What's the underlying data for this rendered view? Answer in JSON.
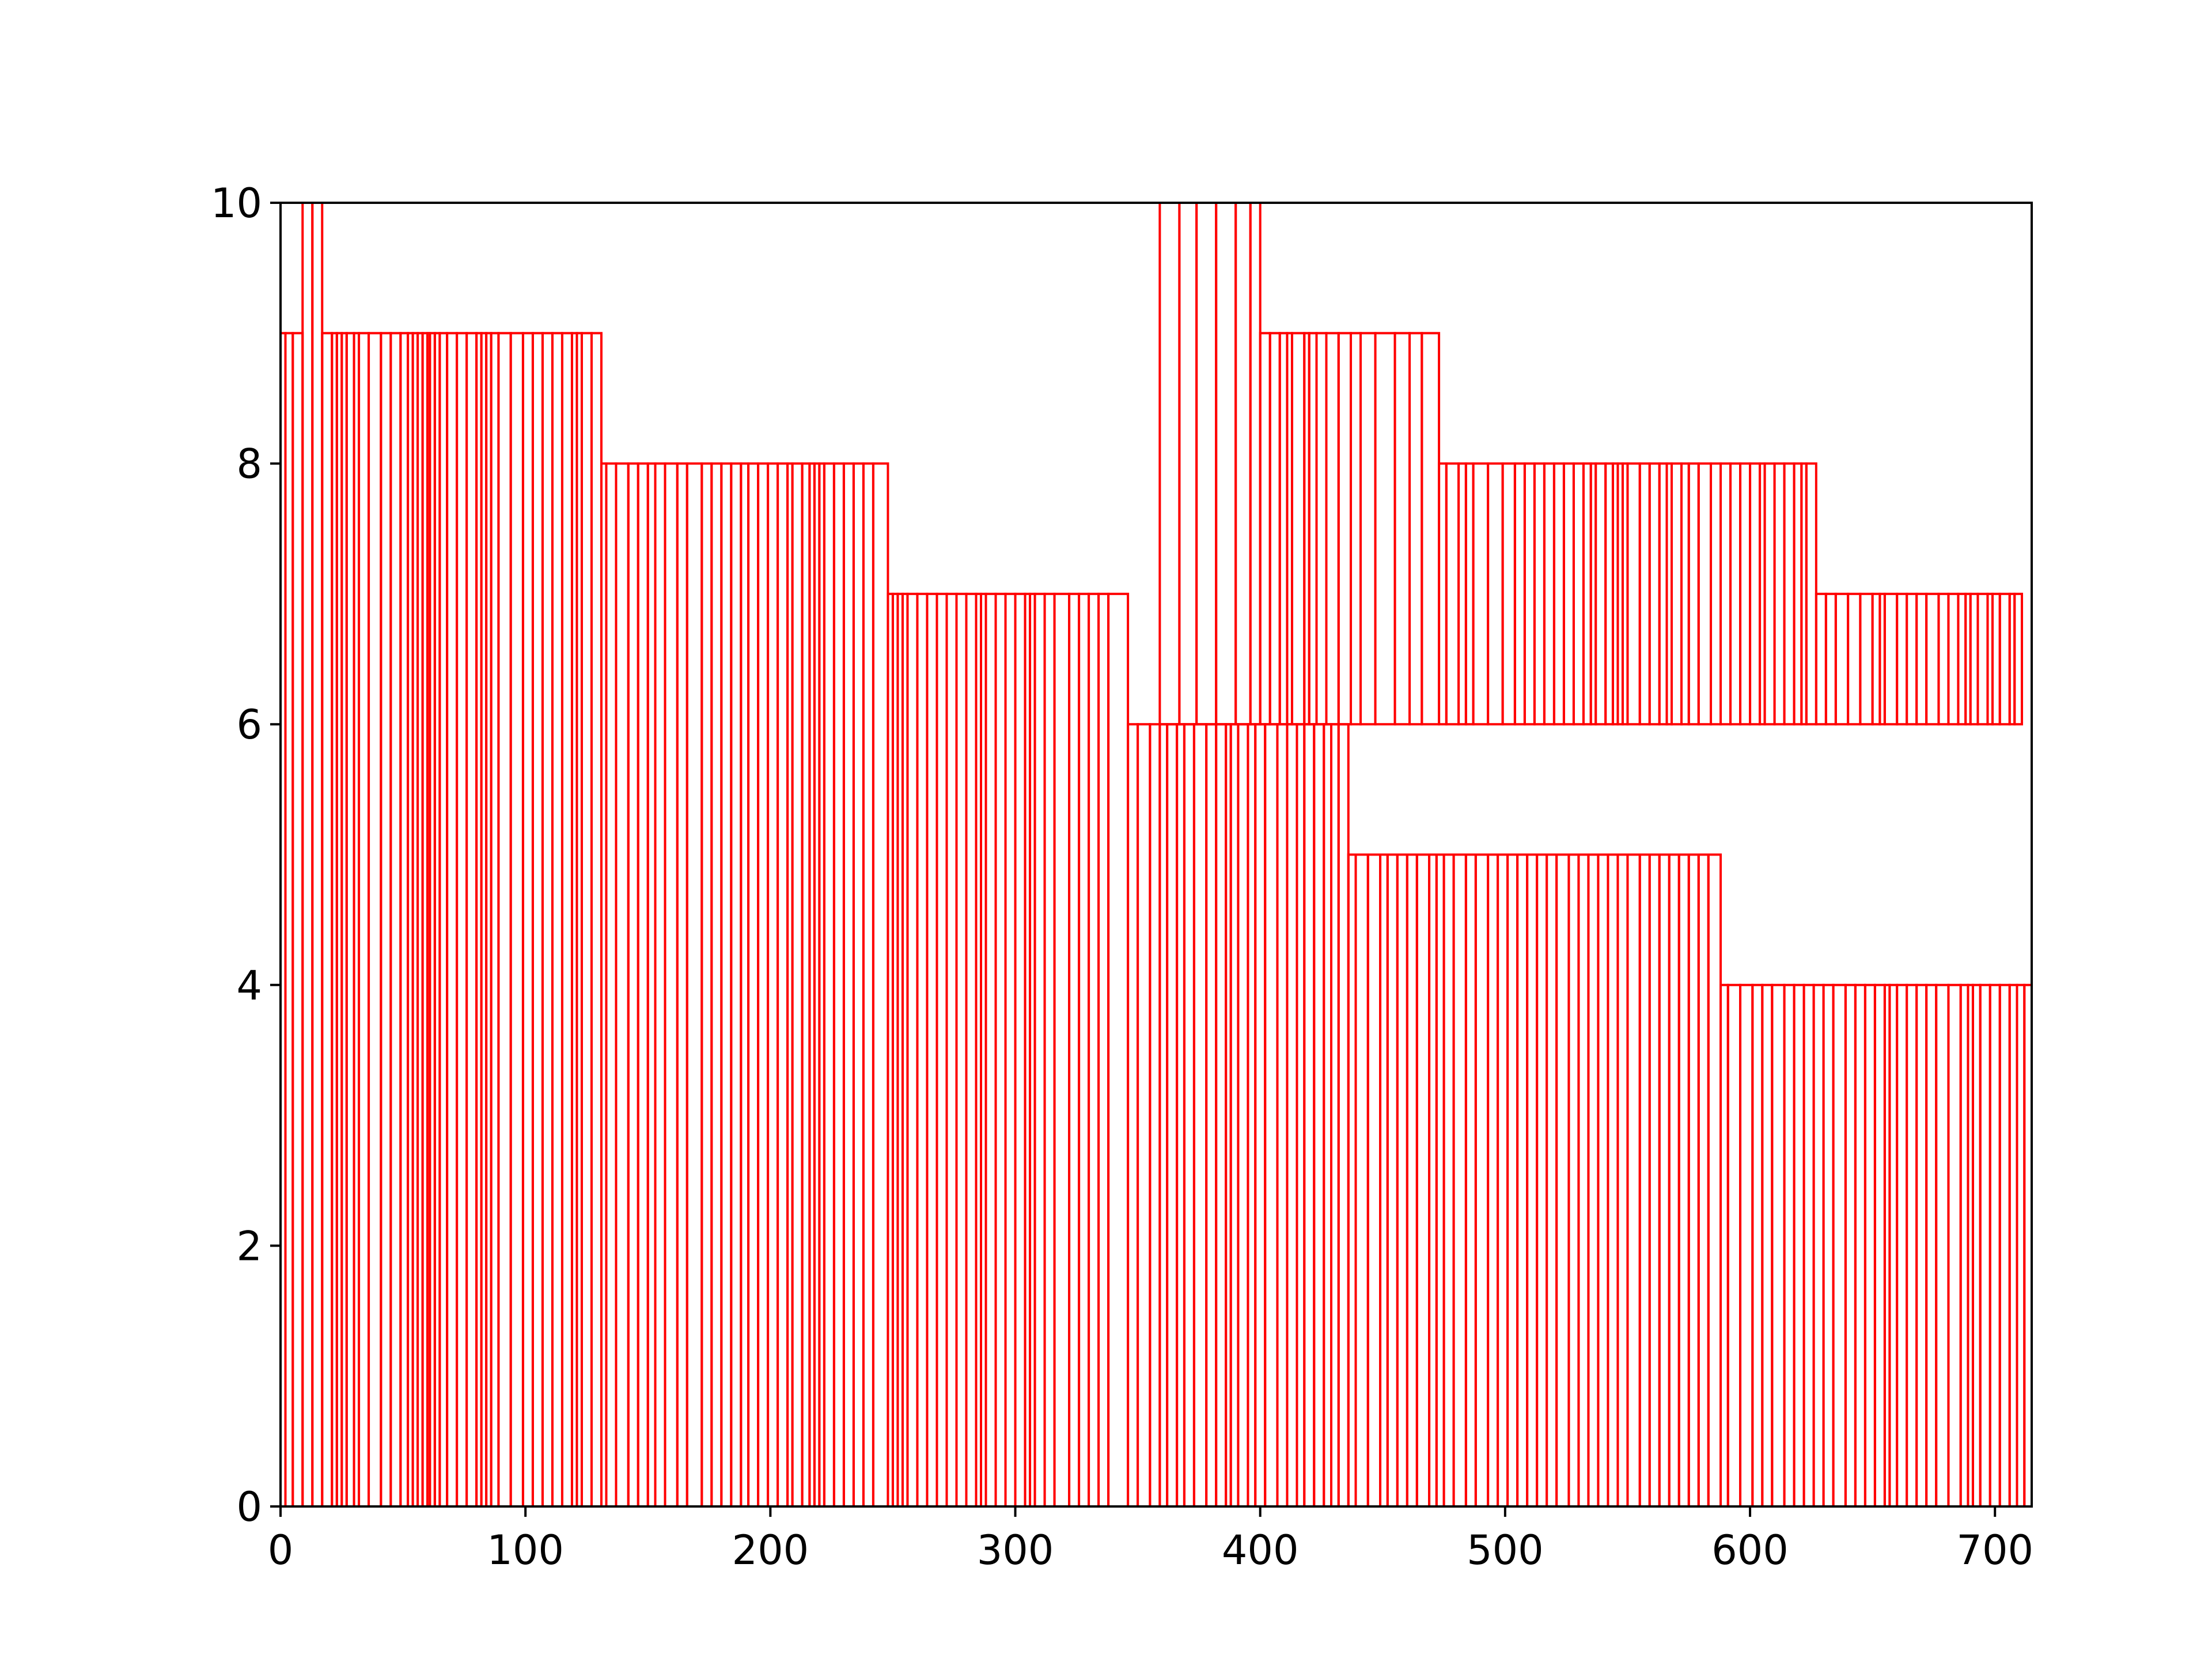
{
  "chart_data": {
    "type": "bar",
    "title": "",
    "xlabel": "",
    "ylabel": "",
    "xlim": [
      0,
      715
    ],
    "ylim": [
      0,
      10
    ],
    "xticks": [
      0,
      100,
      200,
      300,
      400,
      500,
      600,
      700
    ],
    "yticks": [
      0,
      2,
      4,
      6,
      8,
      10
    ],
    "grid": false,
    "legend": "none",
    "bar_color": "#ff0000",
    "bar_fill": "none",
    "groups": [
      {
        "x_start": 0,
        "x_end": 9,
        "bottom": 0,
        "value": 9,
        "edges": [
          0,
          2,
          5,
          9
        ]
      },
      {
        "x_start": 9,
        "x_end": 17,
        "bottom": 0,
        "value": 10,
        "edges": [
          9,
          13,
          17
        ]
      },
      {
        "x_start": 17,
        "x_end": 131,
        "bottom": 0,
        "value": 9,
        "edges": [
          17,
          21,
          23,
          25,
          27,
          30,
          32,
          36,
          41,
          45,
          49,
          52,
          54,
          56,
          58,
          60,
          61,
          63,
          65,
          68,
          72,
          76,
          80,
          82,
          84,
          86,
          89,
          94,
          99,
          103,
          107,
          111,
          115,
          119,
          121,
          123,
          127,
          131
        ]
      },
      {
        "x_start": 131,
        "x_end": 248,
        "bottom": 0,
        "value": 8,
        "edges": [
          131,
          133,
          137,
          142,
          146,
          150,
          153,
          157,
          162,
          166,
          172,
          176,
          180,
          184,
          188,
          191,
          195,
          199,
          203,
          207,
          209,
          213,
          216,
          218,
          220,
          222,
          226,
          230,
          234,
          238,
          242,
          248
        ]
      },
      {
        "x_start": 248,
        "x_end": 346,
        "bottom": 0,
        "value": 7,
        "edges": [
          248,
          250,
          252,
          254,
          256,
          260,
          264,
          268,
          272,
          276,
          280,
          284,
          286,
          288,
          292,
          296,
          300,
          304,
          306,
          308,
          312,
          316,
          322,
          326,
          330,
          334,
          338,
          346
        ]
      },
      {
        "x_start": 346,
        "x_end": 359,
        "bottom": 0,
        "value": 6,
        "edges": [
          346,
          350,
          355,
          359
        ]
      },
      {
        "x_start": 359,
        "x_end": 400,
        "bottom": 6,
        "value": 10,
        "edges": [
          359,
          367,
          374,
          382,
          390,
          396,
          400
        ]
      },
      {
        "x_start": 359,
        "x_end": 436,
        "bottom": 0,
        "value": 6,
        "edges": [
          359,
          362,
          366,
          369,
          373,
          378,
          382,
          386,
          388,
          391,
          395,
          398,
          402,
          407,
          411,
          415,
          418,
          422,
          426,
          429,
          432,
          436
        ]
      },
      {
        "x_start": 400,
        "x_end": 473,
        "bottom": 6,
        "value": 9,
        "edges": [
          400,
          404,
          408,
          411,
          413,
          418,
          420,
          423,
          427,
          432,
          437,
          441,
          447,
          455,
          461,
          466,
          473
        ]
      },
      {
        "x_start": 473,
        "x_end": 627,
        "bottom": 6,
        "value": 8,
        "edges": [
          473,
          476,
          481,
          484,
          487,
          493,
          499,
          504,
          508,
          512,
          516,
          520,
          524,
          528,
          532,
          535,
          537,
          541,
          544,
          546,
          548,
          550,
          555,
          559,
          563,
          566,
          568,
          572,
          575,
          579,
          584,
          588,
          592,
          596,
          600,
          604,
          606,
          610,
          614,
          618,
          621,
          623,
          627
        ]
      },
      {
        "x_start": 627,
        "x_end": 711,
        "bottom": 6,
        "value": 7,
        "edges": [
          627,
          631,
          635,
          640,
          645,
          650,
          653,
          655,
          660,
          664,
          668,
          672,
          677,
          681,
          685,
          688,
          690,
          693,
          697,
          699,
          702,
          706,
          708,
          711
        ]
      },
      {
        "x_start": 436,
        "x_end": 588,
        "bottom": 0,
        "value": 5,
        "edges": [
          436,
          439,
          444,
          449,
          452,
          456,
          460,
          464,
          469,
          472,
          475,
          479,
          484,
          488,
          493,
          497,
          501,
          505,
          509,
          513,
          517,
          521,
          526,
          530,
          534,
          538,
          542,
          546,
          550,
          555,
          559,
          563,
          567,
          571,
          575,
          579,
          583,
          588
        ]
      },
      {
        "x_start": 588,
        "x_end": 715,
        "bottom": 0,
        "value": 4,
        "edges": [
          588,
          591,
          596,
          601,
          605,
          609,
          614,
          618,
          622,
          626,
          630,
          634,
          639,
          643,
          647,
          651,
          655,
          657,
          660,
          664,
          668,
          672,
          676,
          681,
          686,
          689,
          691,
          694,
          698,
          702,
          706,
          709,
          712,
          715
        ]
      }
    ]
  }
}
